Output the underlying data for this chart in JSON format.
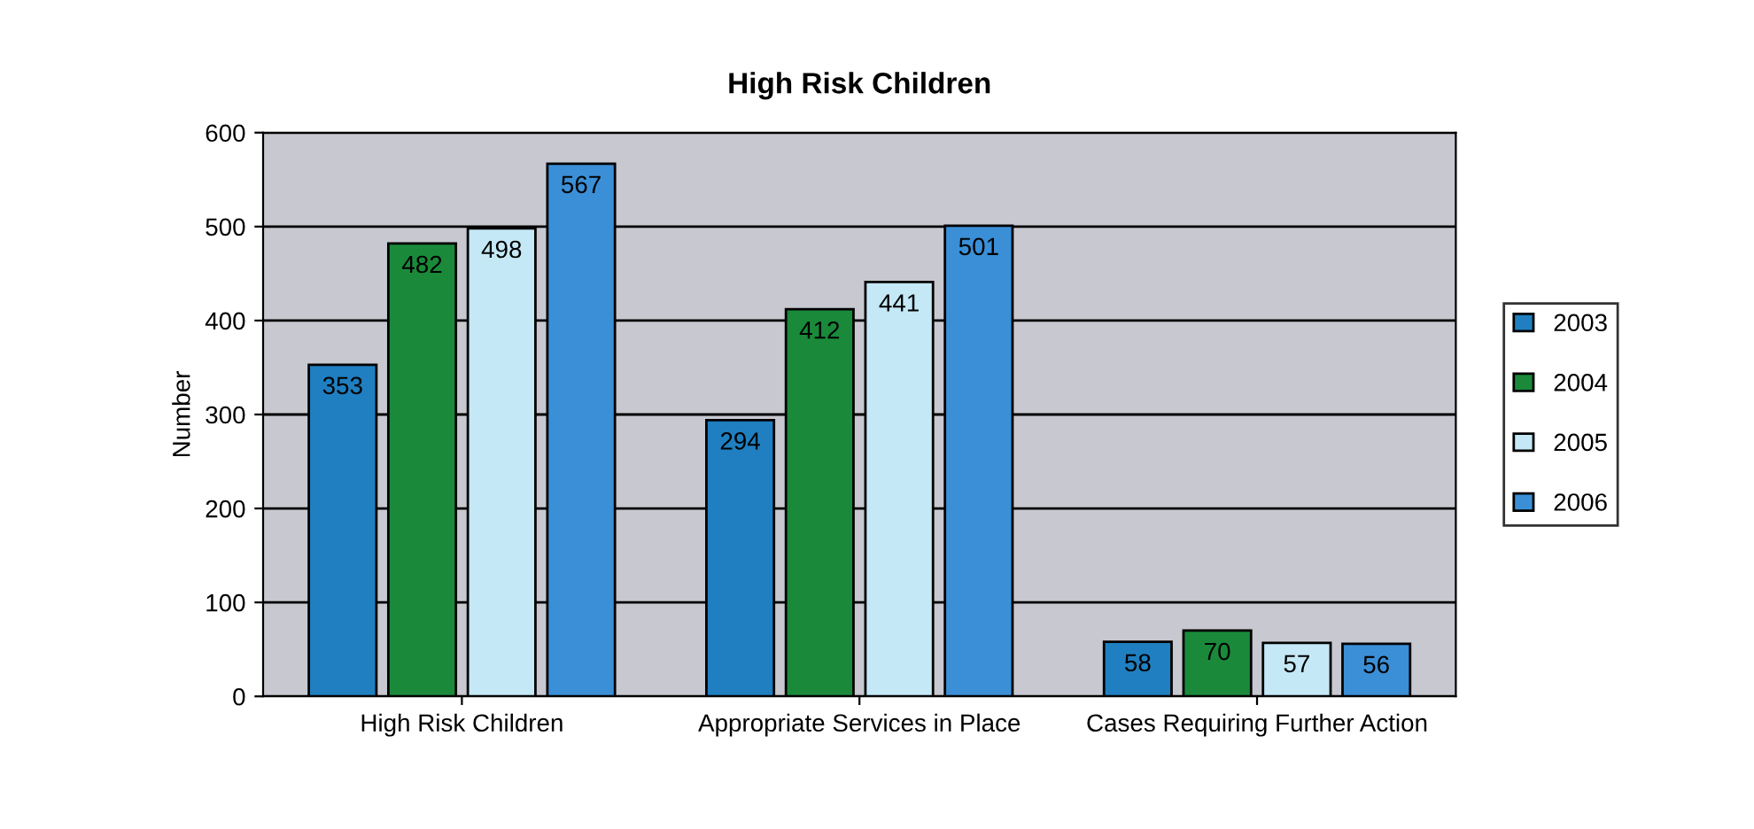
{
  "chart_data": {
    "type": "bar",
    "title": "High Risk Children",
    "ylabel": "Number",
    "categories": [
      "High Risk Children",
      "Appropriate Services in Place",
      "Cases Requiring Further Action"
    ],
    "series": [
      {
        "name": "2003",
        "color": "#1f7fc0",
        "values": [
          353,
          294,
          58
        ]
      },
      {
        "name": "2004",
        "color": "#1a8a3a",
        "values": [
          482,
          412,
          70
        ]
      },
      {
        "name": "2005",
        "color": "#c4e8f6",
        "values": [
          498,
          441,
          57
        ]
      },
      {
        "name": "2006",
        "color": "#3b8fd6",
        "values": [
          567,
          501,
          56
        ]
      }
    ],
    "ylim": [
      0,
      600
    ],
    "yticks": [
      0,
      100,
      200,
      300,
      400,
      500,
      600
    ],
    "grid": "y",
    "legend": "right",
    "data_labels": true
  }
}
